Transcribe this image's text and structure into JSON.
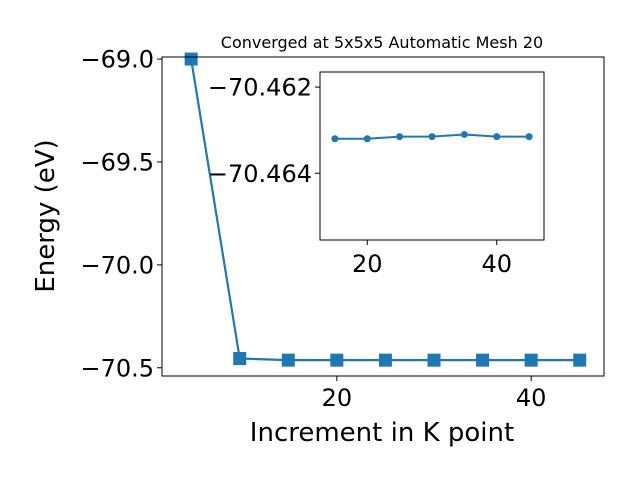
{
  "chart_data": [
    {
      "type": "line",
      "title": "Converged at 5x5x5 Automatic Mesh 20",
      "xlabel": "Increment in K point",
      "ylabel": "Energy (eV)",
      "xlim": [
        2.0,
        47.5
      ],
      "ylim": [
        -70.54,
        -68.99
      ],
      "x_ticks": [
        20,
        40
      ],
      "x_tick_labels": [
        "20",
        "40"
      ],
      "y_ticks": [
        -69.0,
        -69.5,
        -70.0,
        -70.5
      ],
      "y_tick_labels": [
        "−69.0",
        "−69.5",
        "−70.0",
        "−70.5"
      ],
      "marker": "square",
      "color": "#1f77b4",
      "grid": false,
      "series": [
        {
          "x": [
            5,
            10,
            15,
            20,
            25,
            30,
            35,
            40,
            45
          ],
          "y": [
            -69.0,
            -70.455,
            -70.463,
            -70.463,
            -70.463,
            -70.463,
            -70.463,
            -70.463,
            -70.463
          ]
        }
      ]
    },
    {
      "type": "line",
      "role": "inset",
      "xlim": [
        12.7,
        47.3
      ],
      "ylim": [
        -70.46555,
        -70.46165
      ],
      "x_ticks": [
        20,
        40
      ],
      "x_tick_labels": [
        "20",
        "40"
      ],
      "y_ticks": [
        -70.464,
        -70.462
      ],
      "y_tick_labels": [
        "−70.464",
        "−70.462"
      ],
      "marker": "circle",
      "color": "#1f77b4",
      "grid": false,
      "series": [
        {
          "x": [
            15,
            20,
            25,
            30,
            35,
            40,
            45
          ],
          "y": [
            -70.4632,
            -70.4632,
            -70.46315,
            -70.46315,
            -70.4631,
            -70.46315,
            -70.46315
          ]
        }
      ]
    }
  ]
}
